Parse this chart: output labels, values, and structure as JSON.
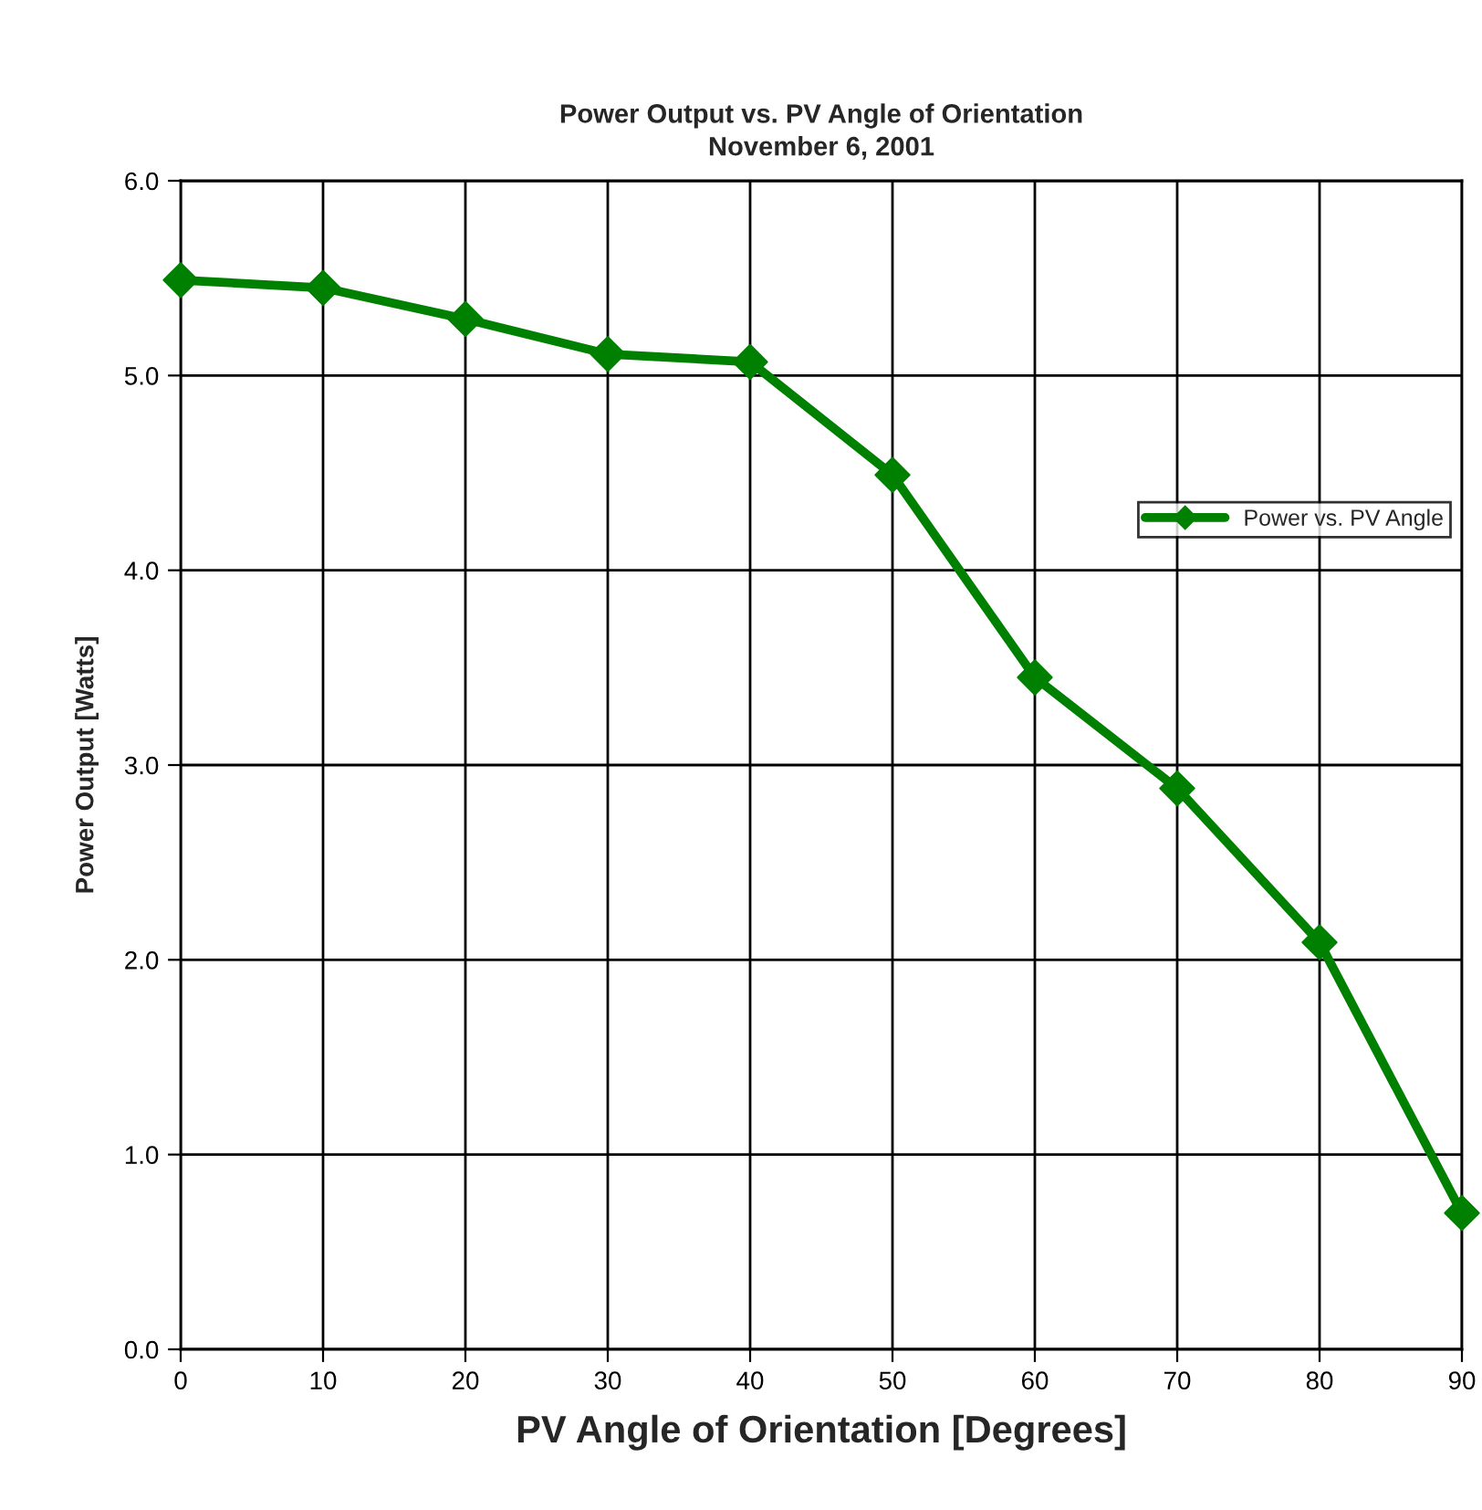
{
  "chart_data": {
    "type": "line",
    "title": "Power Output vs. PV Angle of Orientation\nNovember 6, 2001",
    "xlabel": "PV Angle of Orientation [Degrees]",
    "ylabel": "Power Output [Watts]",
    "x": [
      0,
      10,
      20,
      30,
      40,
      50,
      60,
      70,
      80,
      90
    ],
    "series": [
      {
        "name": "Power vs. PV Angle",
        "color": "#008000",
        "values": [
          5.49,
          5.45,
          5.29,
          5.11,
          5.07,
          4.49,
          3.45,
          2.88,
          2.09,
          0.7
        ]
      }
    ],
    "xlim": [
      0,
      90
    ],
    "xticks": [
      0,
      10,
      20,
      30,
      40,
      50,
      60,
      70,
      80,
      90
    ],
    "ylim": [
      0,
      6
    ],
    "yticks": [
      {
        "value": 0,
        "label": "0.0"
      },
      {
        "value": 1,
        "label": "1.0"
      },
      {
        "value": 2,
        "label": "2.0"
      },
      {
        "value": 3,
        "label": "3.0"
      },
      {
        "value": 4,
        "label": "4.0"
      },
      {
        "value": 5,
        "label": "5.0"
      },
      {
        "value": 6,
        "label": "6.0"
      }
    ],
    "grid": true,
    "legend": "right",
    "marker": "diamond",
    "line_style": "solid"
  }
}
